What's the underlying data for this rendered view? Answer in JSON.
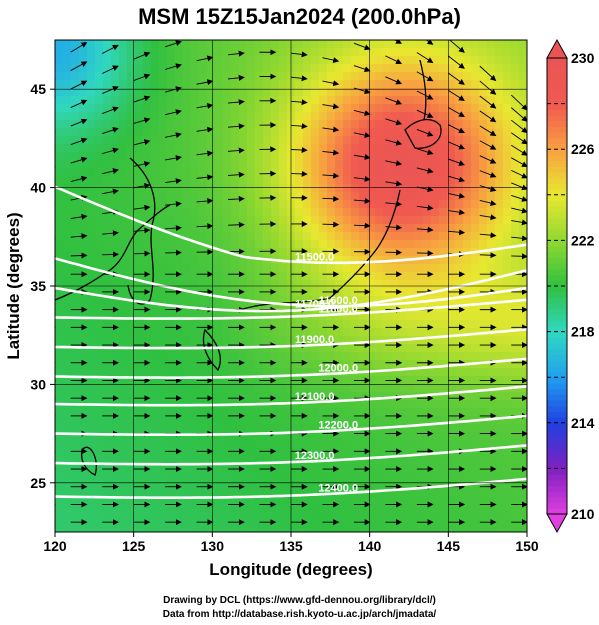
{
  "title": "MSM 15Z15Jan2024 (200.0hPa)",
  "x_axis": {
    "label": "Longitude (degrees)",
    "range": [
      120,
      150
    ],
    "ticks": [
      120,
      125,
      130,
      135,
      140,
      145,
      150
    ]
  },
  "y_axis": {
    "label": "Latitude  (degrees)",
    "range": [
      22.5,
      47.5
    ],
    "ticks": [
      25,
      30,
      35,
      40,
      45
    ]
  },
  "colorbar": {
    "range": [
      210,
      230
    ],
    "ticks": [
      210,
      214,
      218,
      222,
      226,
      230
    ],
    "colors": [
      "#e040e0",
      "#8020c0",
      "#2040e0",
      "#20a0f0",
      "#30d8c0",
      "#30c040",
      "#90d830",
      "#e8e830",
      "#f8a040",
      "#f05a50",
      "#ea5454"
    ]
  },
  "contours": {
    "color": "#ffffff",
    "labels": [
      "11500.0",
      "11600.0",
      "11700.0",
      "11800.0",
      "11900.0",
      "12000.0",
      "12100.0",
      "12200.0",
      "12300.0",
      "12400.0"
    ]
  },
  "credits": {
    "line1": "Drawing by DCL (https://www.gfd-dennou.org/library/dcl/)",
    "line2": "Data from http://database.rish.kyoto-u.ac.jp/arch/jmadata/"
  }
}
